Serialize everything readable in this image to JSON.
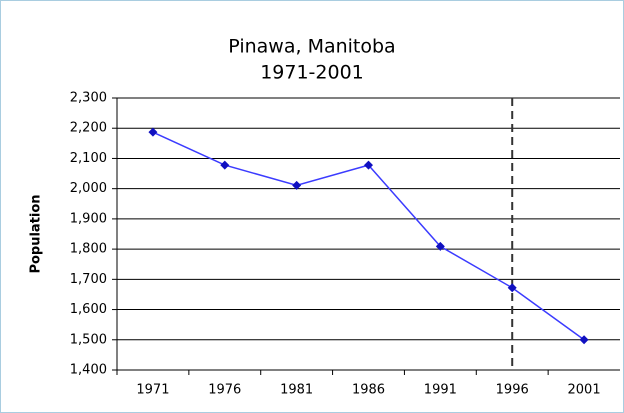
{
  "chart_data": {
    "type": "line",
    "title": "Pinawa, Manitoba",
    "subtitle": "1971-2001",
    "y_label": "Population",
    "categories": [
      "1971",
      "1976",
      "1981",
      "1986",
      "1991",
      "1996",
      "2001"
    ],
    "series": [
      {
        "name": "Population",
        "color": "#3b3bff",
        "marker_color": "#1010c0",
        "values": [
          2187,
          2078,
          2011,
          2078,
          1809,
          1672,
          1500
        ]
      }
    ],
    "ylim": [
      1400,
      2300
    ],
    "yticks": [
      {
        "value": 1400,
        "label": "1,400"
      },
      {
        "value": 1500,
        "label": "1,500"
      },
      {
        "value": 1600,
        "label": "1,600"
      },
      {
        "value": 1700,
        "label": "1,700"
      },
      {
        "value": 1800,
        "label": "1,800"
      },
      {
        "value": 1900,
        "label": "1,900"
      },
      {
        "value": 2000,
        "label": "2,000"
      },
      {
        "value": 2100,
        "label": "2,100"
      },
      {
        "value": 2200,
        "label": "2,200"
      },
      {
        "value": 2300,
        "label": "2,300"
      }
    ],
    "grid": true,
    "vline": "1996"
  }
}
